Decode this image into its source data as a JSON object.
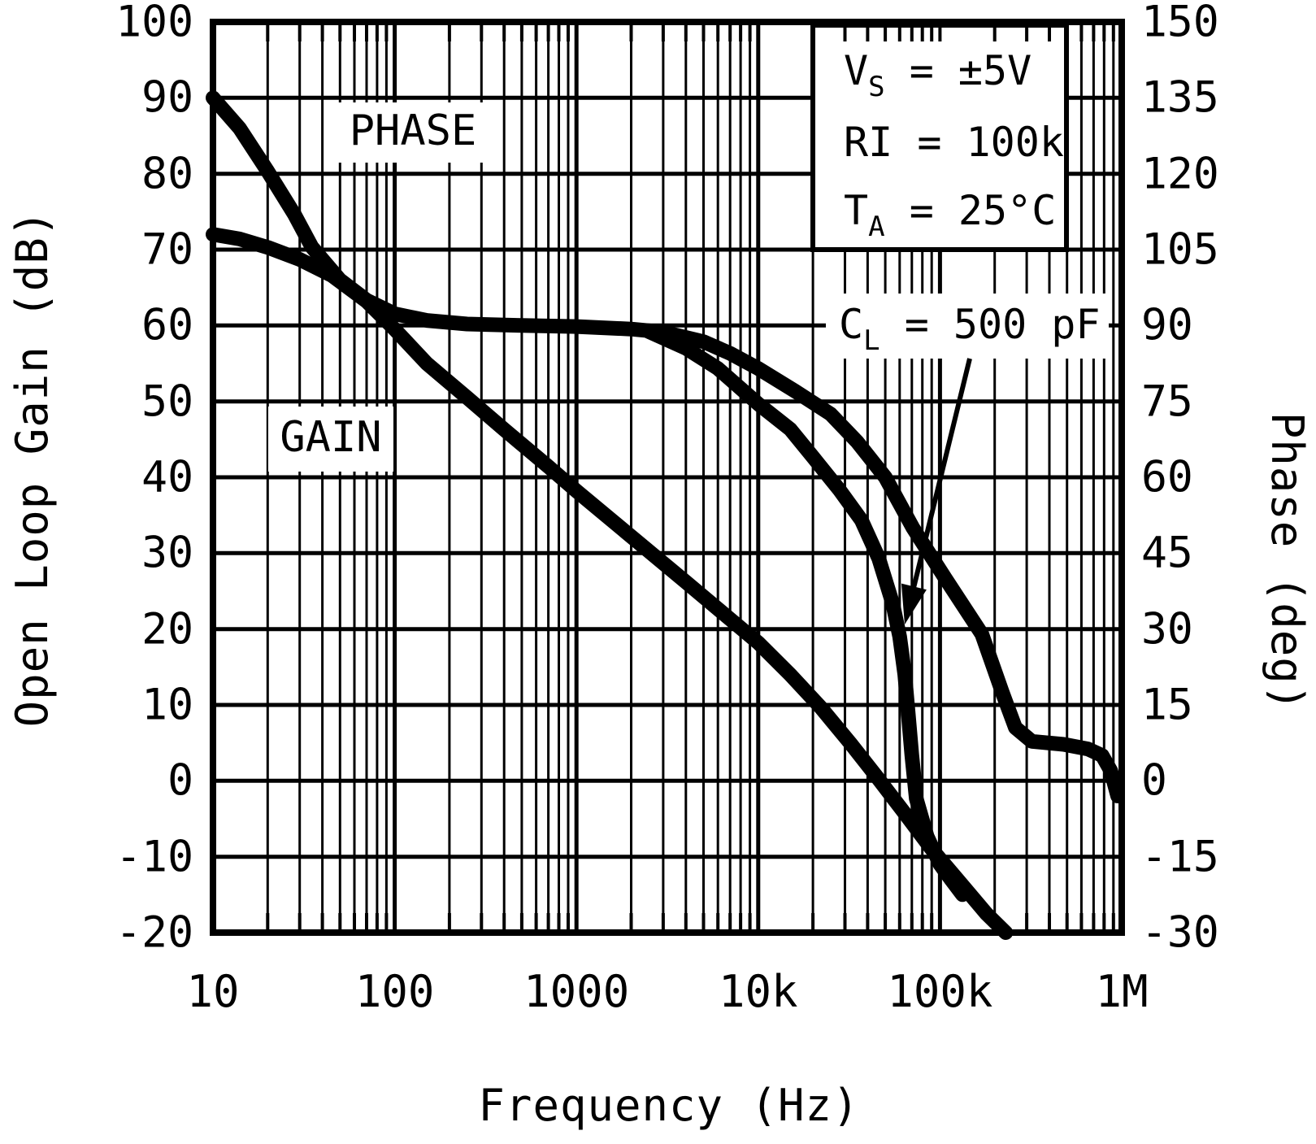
{
  "figure": {
    "curve_labels": {
      "phase": "PHASE",
      "gain": "GAIN"
    },
    "conditions": [
      {
        "base": "V",
        "sub": "S",
        "rest": " = ±5V"
      },
      {
        "base": "RI",
        "sub": "",
        "rest": " = 100k"
      },
      {
        "base": "T",
        "sub": "A",
        "rest": " = 25°C"
      }
    ],
    "cl_annotation": {
      "base": "C",
      "sub": "L",
      "rest": " = 500 pF"
    },
    "axes": {
      "x": {
        "title": "Frequency (Hz)",
        "tick_labels": [
          "10",
          "100",
          "1000",
          "10k",
          "100k",
          "1M"
        ]
      },
      "y_left": {
        "title": "Open Loop Gain (dB)",
        "tick_labels": [
          "100",
          "90",
          "80",
          "70",
          "60",
          "50",
          "40",
          "30",
          "20",
          "10",
          "0",
          "-10",
          "-20"
        ]
      },
      "y_right": {
        "title": "Phase (deg)",
        "tick_labels": [
          "150",
          "135",
          "120",
          "105",
          "90",
          "75",
          "60",
          "45",
          "30",
          "15",
          "0",
          "-15",
          "-30"
        ]
      }
    }
  },
  "chart_data": {
    "type": "line",
    "title": "Open Loop Gain / Phase vs Frequency",
    "x_scale": "log",
    "x_range": [
      10,
      1000000
    ],
    "xlabel": "Frequency (Hz)",
    "y_left": {
      "label": "Open Loop Gain (dB)",
      "range": [
        -20,
        100
      ],
      "tick_step": 10
    },
    "y_right": {
      "label": "Phase (deg)",
      "range": [
        -30,
        150
      ],
      "tick_step": 15
    },
    "grid": "full log-log grid, major and minor lines, black on white",
    "annotations": [
      "VS = ±5V",
      "RI = 100k",
      "TA = 25°C",
      "CL = 500 pF (arrow points to steep phase curve)"
    ],
    "series": [
      {
        "name": "Open Loop Gain",
        "axis": "left",
        "unit": "dB",
        "points": [
          [
            10,
            72
          ],
          [
            14,
            71.4
          ],
          [
            20,
            70.3
          ],
          [
            30,
            68.7
          ],
          [
            45,
            66.6
          ],
          [
            70,
            63.2
          ],
          [
            100,
            59.5
          ],
          [
            150,
            55
          ],
          [
            250,
            50.5
          ],
          [
            400,
            46.3
          ],
          [
            700,
            41.4
          ],
          [
            1000,
            38.2
          ],
          [
            2000,
            32.2
          ],
          [
            4000,
            26.2
          ],
          [
            7000,
            21.3
          ],
          [
            10000,
            18.2
          ],
          [
            15000,
            14
          ],
          [
            22000,
            9.7
          ],
          [
            32000,
            5
          ],
          [
            45000,
            0.5
          ],
          [
            65000,
            -4.5
          ],
          [
            90000,
            -9
          ],
          [
            130000,
            -13.5
          ],
          [
            180000,
            -17.5
          ],
          [
            230000,
            -20
          ]
        ]
      },
      {
        "name": "Phase",
        "axis": "right",
        "unit": "deg",
        "points": [
          [
            10,
            135
          ],
          [
            14,
            129
          ],
          [
            20,
            120.5
          ],
          [
            28,
            112
          ],
          [
            35,
            105.5
          ],
          [
            50,
            99
          ],
          [
            70,
            95
          ],
          [
            100,
            92.3
          ],
          [
            150,
            91
          ],
          [
            250,
            90.3
          ],
          [
            500,
            90
          ],
          [
            1000,
            89.8
          ],
          [
            2000,
            89.3
          ],
          [
            3000,
            88.7
          ],
          [
            5000,
            86.8
          ],
          [
            7000,
            84.5
          ],
          [
            10000,
            81.5
          ],
          [
            16000,
            77
          ],
          [
            25000,
            72.5
          ],
          [
            35000,
            67
          ],
          [
            50000,
            60
          ],
          [
            71000,
            50
          ],
          [
            107000,
            40
          ],
          [
            170000,
            29
          ],
          [
            220000,
            17.5
          ],
          [
            260000,
            10.5
          ],
          [
            320000,
            7.8
          ],
          [
            480000,
            7.2
          ],
          [
            650000,
            6.3
          ],
          [
            780000,
            5
          ],
          [
            870000,
            2
          ],
          [
            950000,
            -3
          ]
        ]
      },
      {
        "name": "Phase (CL = 500 pF)",
        "axis": "right",
        "unit": "deg",
        "points": [
          [
            2500,
            88.8
          ],
          [
            4000,
            85.5
          ],
          [
            6000,
            81.5
          ],
          [
            10000,
            74.5
          ],
          [
            15000,
            69.5
          ],
          [
            20000,
            64
          ],
          [
            28000,
            57.5
          ],
          [
            37000,
            51.5
          ],
          [
            46000,
            44
          ],
          [
            55000,
            35
          ],
          [
            60000,
            28.5
          ],
          [
            64000,
            21
          ],
          [
            67000,
            13
          ],
          [
            70000,
            5
          ],
          [
            74000,
            -3.5
          ],
          [
            85000,
            -11
          ],
          [
            100000,
            -16.5
          ],
          [
            115000,
            -19.5
          ],
          [
            133000,
            -22.5
          ]
        ]
      }
    ]
  }
}
